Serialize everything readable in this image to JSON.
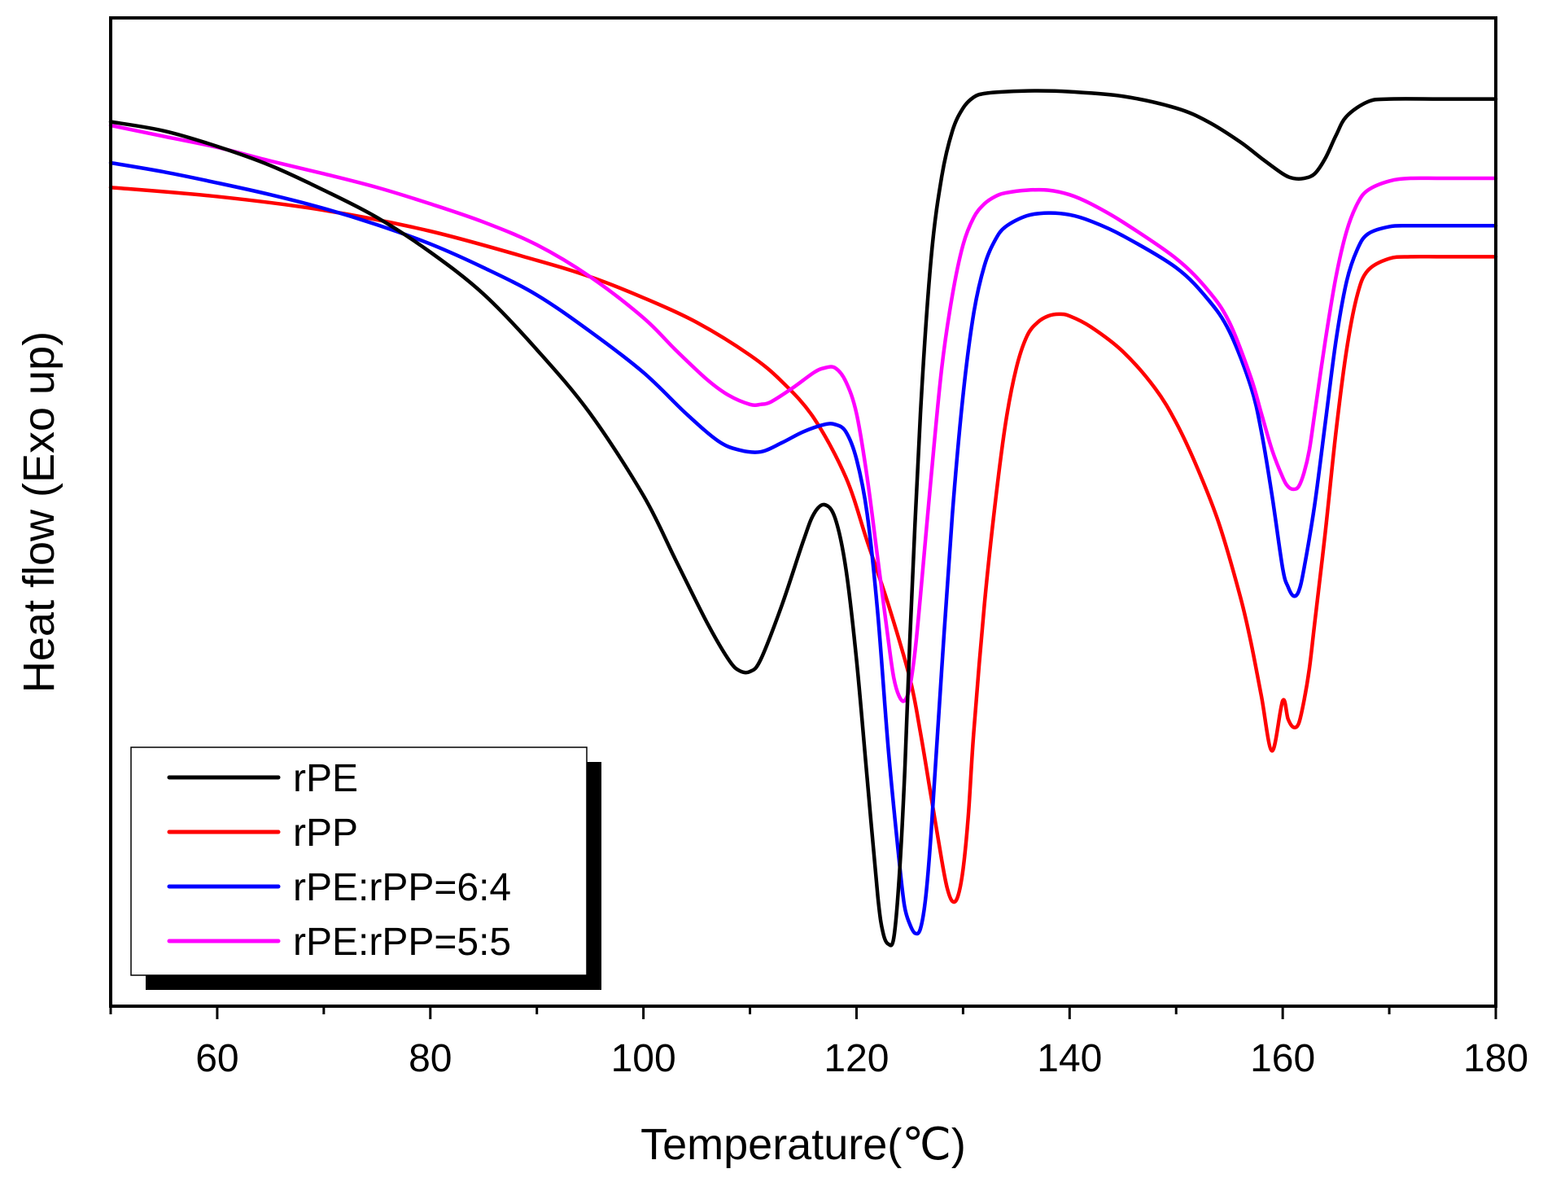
{
  "chart_data": {
    "type": "line",
    "title": "",
    "xlabel": "Temperature(℃)",
    "ylabel": "Heat flow (Exo up)",
    "xlim": [
      50,
      180
    ],
    "ylim": [
      0,
      1
    ],
    "x_ticks": [
      60,
      80,
      100,
      120,
      140,
      160,
      180
    ],
    "x_ticks_labels": [
      "60",
      "80",
      "100",
      "120",
      "140",
      "160",
      "180"
    ],
    "y_ticks_shown": false,
    "grid": false,
    "legend_position": "bottom-left",
    "series": [
      {
        "name": "rPE",
        "color": "#000000",
        "x": [
          50,
          55,
          60,
          65,
          70,
          75,
          80,
          85,
          90,
          95,
          100,
          103,
          106,
          108,
          109,
          110,
          111,
          113,
          115,
          116,
          117,
          118,
          119,
          120,
          121,
          122,
          122.5,
          123,
          123.5,
          124,
          124.5,
          125,
          126,
          127,
          128,
          129,
          130,
          131,
          132,
          134,
          137,
          140,
          145,
          150,
          153,
          156,
          158,
          160,
          161,
          162,
          163,
          164,
          165,
          166,
          168,
          170,
          175,
          180
        ],
        "y": [
          0.92,
          0.91,
          0.893,
          0.872,
          0.845,
          0.815,
          0.777,
          0.731,
          0.67,
          0.6,
          0.51,
          0.44,
          0.37,
          0.33,
          0.318,
          0.317,
          0.33,
          0.39,
          0.46,
          0.49,
          0.5,
          0.485,
          0.43,
          0.33,
          0.2,
          0.07,
          0.03,
          0.018,
          0.025,
          0.09,
          0.2,
          0.35,
          0.6,
          0.77,
          0.86,
          0.91,
          0.935,
          0.947,
          0.951,
          0.953,
          0.954,
          0.953,
          0.948,
          0.935,
          0.92,
          0.898,
          0.88,
          0.863,
          0.858,
          0.858,
          0.863,
          0.88,
          0.905,
          0.926,
          0.942,
          0.945,
          0.945,
          0.945
        ]
      },
      {
        "name": "rPP",
        "color": "#ff0000",
        "x": [
          50,
          60,
          70,
          80,
          90,
          95,
          100,
          105,
          110,
          113,
          116,
          119,
          121,
          123,
          125,
          126,
          127,
          128,
          128.5,
          129,
          129.5,
          130,
          130.5,
          131,
          132,
          133,
          134,
          135,
          136,
          137,
          138,
          139,
          140,
          142,
          145,
          148,
          150,
          152,
          154,
          156,
          157,
          158,
          159,
          160,
          160.5,
          161,
          161.5,
          162,
          162.5,
          163,
          164,
          165,
          166,
          167,
          168,
          170,
          172,
          175,
          180
        ],
        "y": [
          0.848,
          0.838,
          0.823,
          0.8,
          0.768,
          0.75,
          0.727,
          0.7,
          0.664,
          0.635,
          0.595,
          0.53,
          0.46,
          0.39,
          0.31,
          0.25,
          0.18,
          0.11,
          0.08,
          0.065,
          0.07,
          0.1,
          0.16,
          0.25,
          0.39,
          0.5,
          0.59,
          0.65,
          0.685,
          0.7,
          0.707,
          0.709,
          0.707,
          0.695,
          0.668,
          0.628,
          0.59,
          0.54,
          0.48,
          0.4,
          0.35,
          0.29,
          0.23,
          0.285,
          0.265,
          0.256,
          0.26,
          0.285,
          0.32,
          0.37,
          0.47,
          0.58,
          0.67,
          0.73,
          0.757,
          0.77,
          0.772,
          0.772,
          0.772
        ]
      },
      {
        "name": "rPE:rPP=6:4",
        "color": "#0000ff",
        "x": [
          50,
          55,
          60,
          65,
          70,
          75,
          80,
          85,
          90,
          95,
          100,
          104,
          107,
          109,
          111,
          113,
          115,
          117,
          118,
          119,
          120,
          121,
          122,
          123,
          124,
          124.5,
          125,
          125.5,
          126,
          126.5,
          127,
          128,
          129,
          130,
          131,
          132,
          133,
          134,
          136,
          138,
          140,
          142,
          145,
          150,
          153,
          155,
          157,
          158,
          159,
          160,
          160.5,
          161,
          161.5,
          162,
          163,
          164,
          165,
          166,
          167,
          168,
          170,
          172,
          175,
          180
        ],
        "y": [
          0.875,
          0.865,
          0.853,
          0.84,
          0.825,
          0.807,
          0.786,
          0.76,
          0.73,
          0.69,
          0.645,
          0.6,
          0.57,
          0.56,
          0.558,
          0.568,
          0.58,
          0.588,
          0.588,
          0.58,
          0.55,
          0.49,
          0.38,
          0.23,
          0.11,
          0.06,
          0.04,
          0.03,
          0.035,
          0.07,
          0.14,
          0.32,
          0.49,
          0.62,
          0.71,
          0.762,
          0.79,
          0.805,
          0.817,
          0.82,
          0.818,
          0.811,
          0.795,
          0.76,
          0.725,
          0.69,
          0.63,
          0.58,
          0.51,
          0.43,
          0.41,
          0.4,
          0.405,
          0.43,
          0.5,
          0.59,
          0.68,
          0.745,
          0.78,
          0.797,
          0.805,
          0.806,
          0.806,
          0.806
        ]
      },
      {
        "name": "rPE:rPP=5:5",
        "color": "#ff00ff",
        "x": [
          50,
          55,
          60,
          65,
          70,
          75,
          80,
          85,
          90,
          95,
          100,
          103,
          106,
          108,
          110,
          111,
          112,
          114,
          116,
          117,
          118,
          119,
          120,
          121,
          122,
          123,
          123.5,
          124,
          124.5,
          125,
          125.5,
          126,
          127,
          128,
          129,
          130,
          131,
          132,
          133,
          134,
          136,
          138,
          140,
          142,
          145,
          150,
          153,
          155,
          157,
          158,
          159,
          160,
          160.5,
          161,
          161.5,
          162,
          162.5,
          163,
          164,
          165,
          166,
          167,
          168,
          170,
          172,
          175,
          180
        ],
        "y": [
          0.916,
          0.904,
          0.892,
          0.877,
          0.863,
          0.848,
          0.83,
          0.81,
          0.785,
          0.75,
          0.705,
          0.67,
          0.637,
          0.62,
          0.61,
          0.61,
          0.613,
          0.628,
          0.645,
          0.65,
          0.65,
          0.635,
          0.6,
          0.53,
          0.44,
          0.35,
          0.31,
          0.29,
          0.285,
          0.3,
          0.34,
          0.4,
          0.53,
          0.65,
          0.73,
          0.785,
          0.815,
          0.83,
          0.838,
          0.842,
          0.845,
          0.845,
          0.84,
          0.83,
          0.81,
          0.77,
          0.735,
          0.7,
          0.64,
          0.6,
          0.56,
          0.53,
          0.52,
          0.517,
          0.52,
          0.535,
          0.56,
          0.6,
          0.68,
          0.75,
          0.8,
          0.83,
          0.845,
          0.855,
          0.858,
          0.858,
          0.858
        ]
      }
    ]
  }
}
